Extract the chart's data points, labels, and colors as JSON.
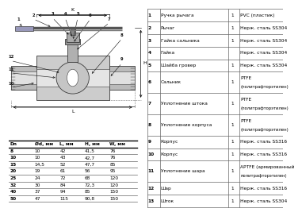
{
  "parts_table": {
    "rows": [
      [
        "1",
        "Ручка рычага",
        "1",
        "PVC (пластик)"
      ],
      [
        "2",
        "Рычаг",
        "1",
        "Нерж. сталь SS304"
      ],
      [
        "3",
        "Гайка сальника",
        "1",
        "Нерж. сталь SS304"
      ],
      [
        "4",
        "Гайка",
        "",
        "Нерж. сталь SS304"
      ],
      [
        "5",
        "Шайба гровер",
        "1",
        "Нерж. сталь SS304"
      ],
      [
        "6",
        "Сальник",
        "1",
        "PTFE\n(политрафторэтилен)"
      ],
      [
        "7",
        "Уплотнение штока",
        "1",
        "PTFE\n(политрафторэтилен)"
      ],
      [
        "8",
        "Уплотнение корпуса",
        "1",
        "PTFE\n(политрафторэтилен)"
      ],
      [
        "9",
        "Корпус",
        "1",
        "Нерж. сталь SS316"
      ],
      [
        "10",
        "Корпус",
        "1",
        "Нерж. сталь SS316"
      ],
      [
        "11",
        "Уплотнение шара",
        "1",
        "APTFE (армированный\nполитрафторэтилен)"
      ],
      [
        "12",
        "Шар",
        "1",
        "Нерж. сталь SS316"
      ],
      [
        "13",
        "Шток",
        "1",
        "Нерж. сталь SS304"
      ]
    ]
  },
  "dimensions_table": {
    "headers": [
      "Dn",
      "Ød, мм",
      "L, мм",
      "H, мм",
      "W, мм"
    ],
    "rows": [
      [
        "8",
        "10",
        "42",
        "41,5",
        "76"
      ],
      [
        "10",
        "10",
        "43",
        "42,7",
        "76"
      ],
      [
        "15",
        "14,5",
        "52",
        "47,7",
        "85"
      ],
      [
        "20",
        "19",
        "61",
        "56",
        "95"
      ],
      [
        "25",
        "24",
        "72",
        "68",
        "120"
      ],
      [
        "32",
        "30",
        "84",
        "72,3",
        "120"
      ],
      [
        "40",
        "37",
        "94",
        "85",
        "150"
      ],
      [
        "50",
        "47",
        "115",
        "90,8",
        "150"
      ]
    ]
  },
  "bg_color": "#ffffff",
  "line_color": "#666666",
  "text_color": "#000000",
  "draw_bg": "#f5f5f5"
}
